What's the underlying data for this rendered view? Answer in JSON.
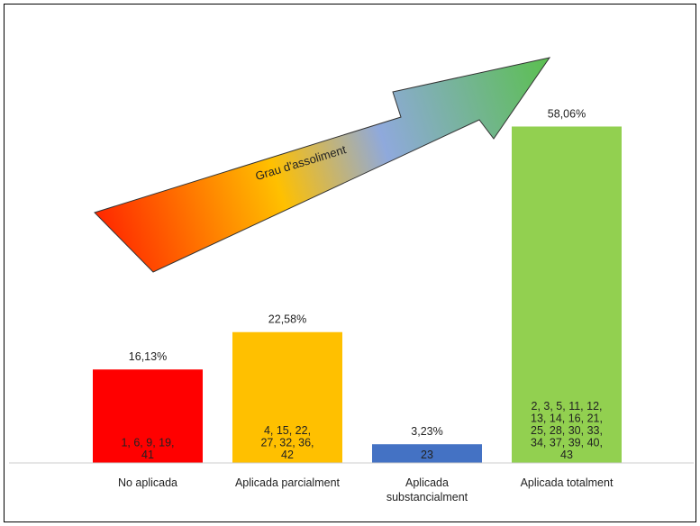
{
  "chart_data": {
    "type": "bar",
    "categories": [
      [
        "No aplicada"
      ],
      [
        "Aplicada parcialment"
      ],
      [
        "Aplicada",
        "substancialment"
      ],
      [
        "Aplicada totalment"
      ]
    ],
    "values": [
      16.13,
      22.58,
      3.23,
      58.06
    ],
    "value_labels": [
      "16,13%",
      "22,58%",
      "3,23%",
      "58,06%"
    ],
    "bar_texts": [
      [
        "1, 6, 9, 19,",
        "41"
      ],
      [
        "4, 15, 22,",
        "27, 32, 36,",
        "42"
      ],
      [
        "23"
      ],
      [
        "2, 3, 5, 11, 12,",
        "13, 14, 16, 21,",
        "25, 28, 30, 33,",
        "34, 37, 39, 40,",
        "43"
      ]
    ],
    "colors": [
      "#ff0000",
      "#ffc000",
      "#4472c4",
      "#92d050"
    ],
    "arrow_label": "Grau d'assoliment",
    "arrow_gradient": [
      "#ff2a00",
      "#ffc000",
      "#8fa9dc",
      "#5cbf52"
    ],
    "ylim": [
      0,
      60
    ],
    "grid": false,
    "legend": "none"
  }
}
